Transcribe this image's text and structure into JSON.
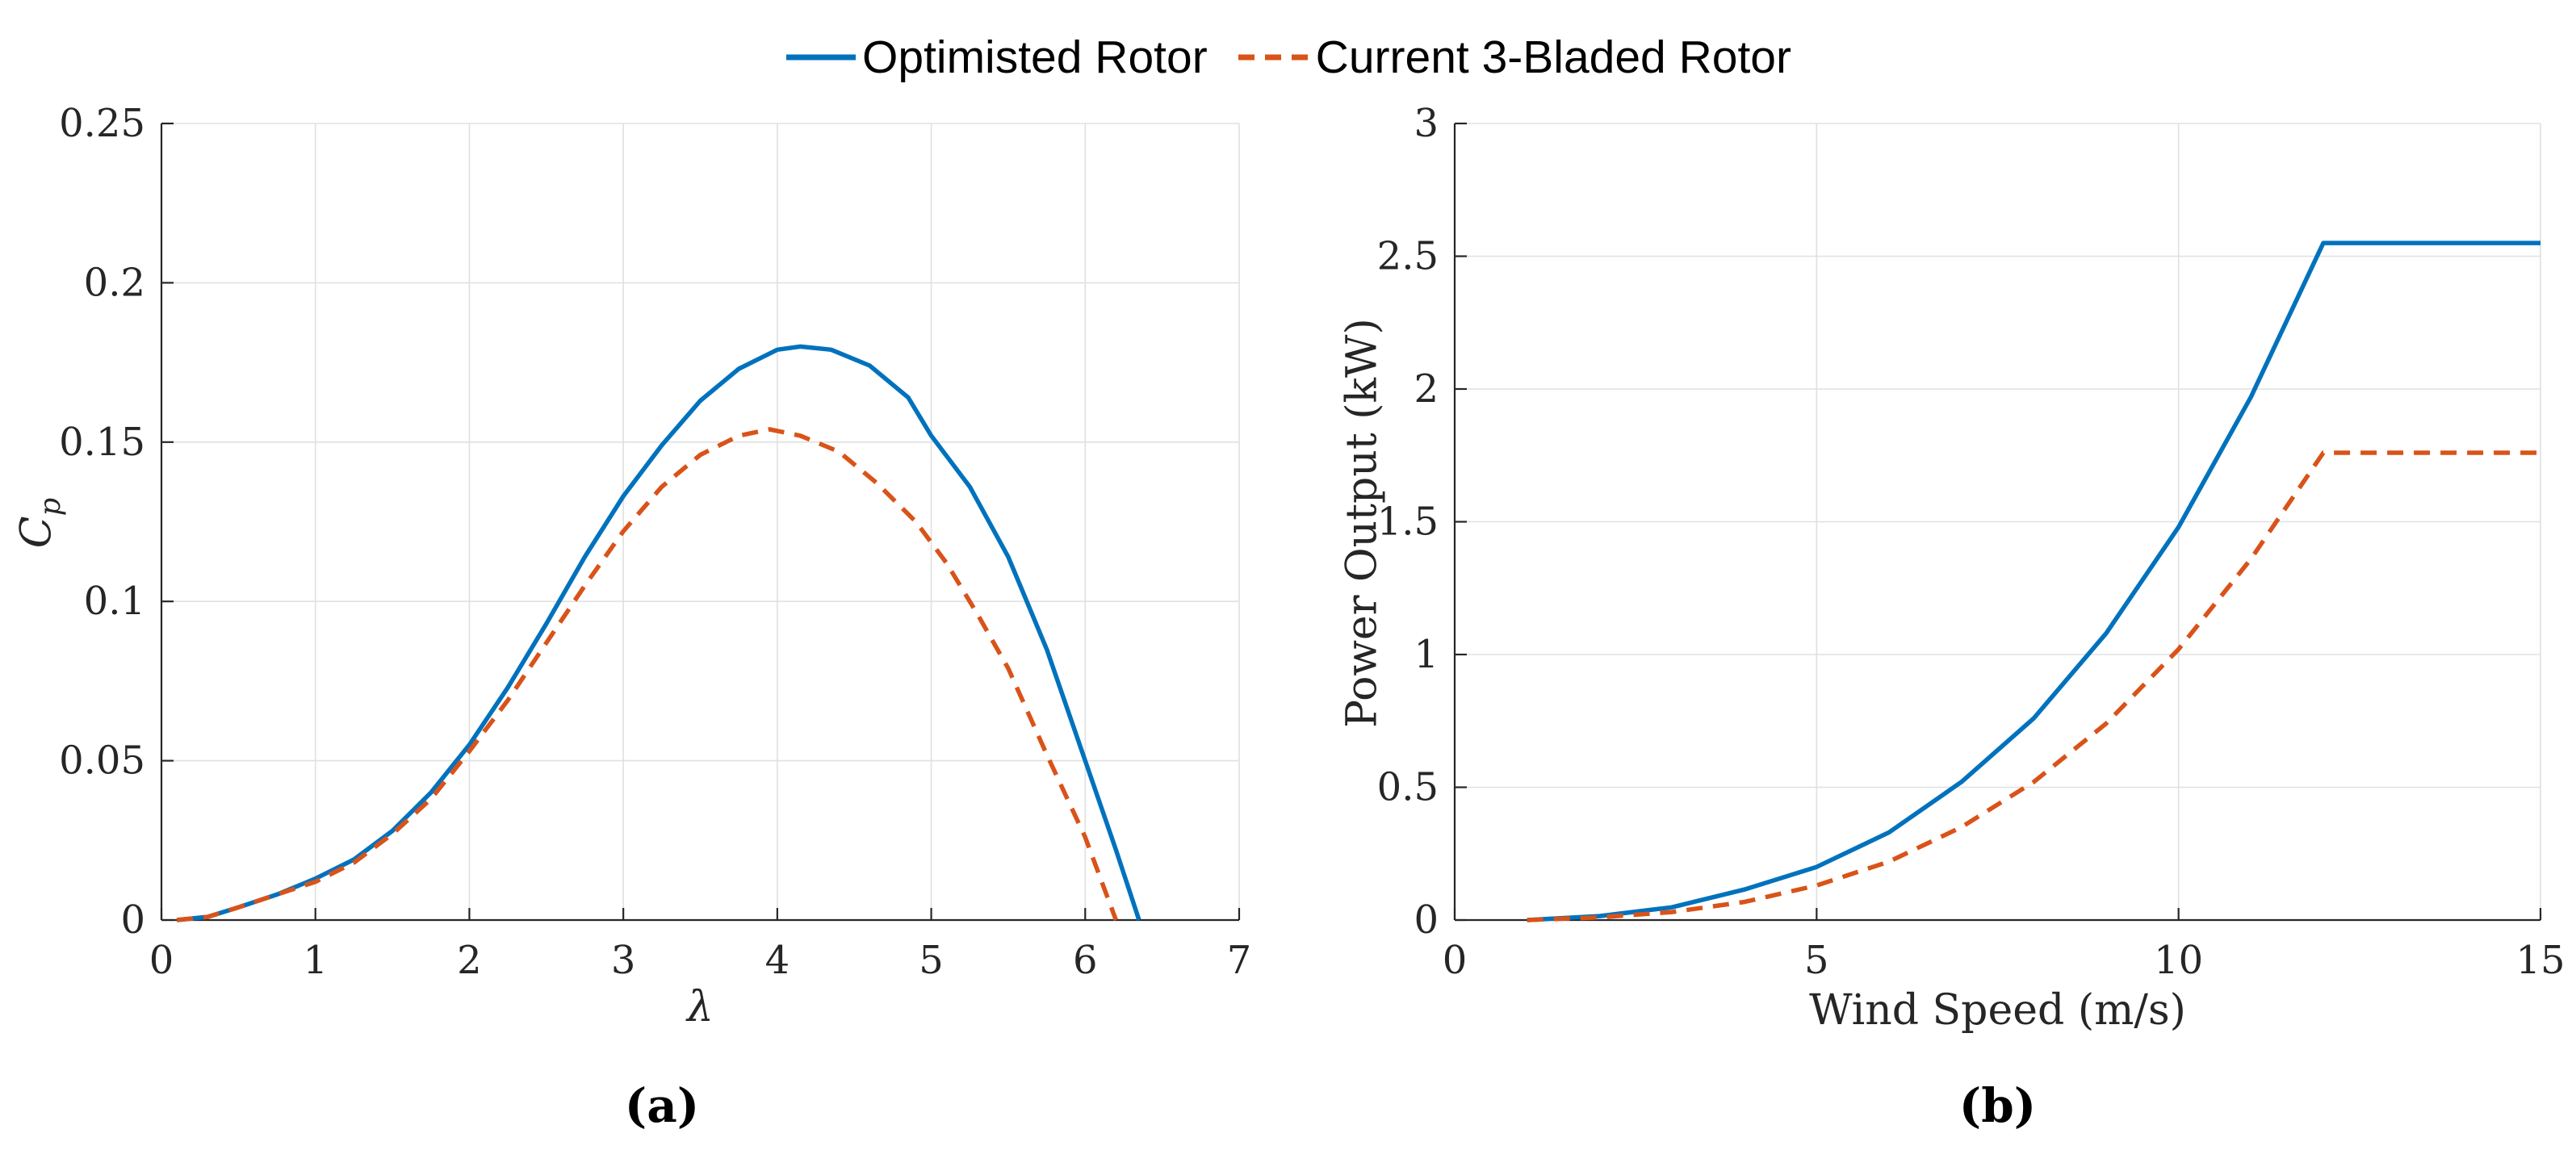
{
  "legend": {
    "items": [
      {
        "label": "Optimisted Rotor",
        "color": "#0072BD",
        "style": "solid"
      },
      {
        "label": "Current 3-Bladed Rotor",
        "color": "#D95319",
        "style": "dashed"
      }
    ]
  },
  "colors": {
    "optimised_rotor": "#0072BD",
    "current_rotor": "#D95319",
    "grid": "#e0e0e0",
    "axis": "#262626",
    "background": "#ffffff"
  },
  "chart_data": [
    {
      "id": "cp-vs-lambda",
      "type": "line",
      "caption": "(a)",
      "xlabel": "λ",
      "ylabel_main": "C",
      "ylabel_sub": "p",
      "xlim": [
        0,
        7
      ],
      "ylim": [
        0,
        0.25
      ],
      "grid": true,
      "xticks": [
        0,
        1,
        2,
        3,
        4,
        5,
        6,
        7
      ],
      "xtick_labels": [
        "0",
        "1",
        "2",
        "3",
        "4",
        "5",
        "6",
        "7"
      ],
      "yticks": [
        0,
        0.05,
        0.1,
        0.15,
        0.2,
        0.25
      ],
      "ytick_labels": [
        "0",
        "0.05",
        "0.1",
        "0.15",
        "0.2",
        "0.25"
      ],
      "series": [
        {
          "name": "Optimisted Rotor",
          "color": "#0072BD",
          "style": "solid",
          "x": [
            0.1,
            0.3,
            0.5,
            0.75,
            1,
            1.25,
            1.5,
            1.75,
            2,
            2.25,
            2.5,
            2.75,
            3,
            3.25,
            3.5,
            3.75,
            4,
            4.15,
            4.35,
            4.6,
            4.85,
            5,
            5.25,
            5.5,
            5.75,
            6,
            6.2,
            6.35
          ],
          "y": [
            0,
            0.001,
            0.004,
            0.008,
            0.013,
            0.019,
            0.028,
            0.04,
            0.055,
            0.073,
            0.093,
            0.114,
            0.133,
            0.149,
            0.163,
            0.173,
            0.179,
            0.18,
            0.179,
            0.174,
            0.164,
            0.152,
            0.136,
            0.114,
            0.085,
            0.05,
            0.022,
            0
          ]
        },
        {
          "name": "Current 3-Bladed Rotor",
          "color": "#D95319",
          "style": "dashed",
          "x": [
            0.1,
            0.3,
            0.5,
            0.75,
            1,
            1.25,
            1.5,
            1.75,
            2,
            2.25,
            2.5,
            2.75,
            3,
            3.25,
            3.5,
            3.75,
            3.95,
            4.15,
            4.4,
            4.65,
            4.9,
            5.1,
            5.3,
            5.5,
            5.75,
            6,
            6.2
          ],
          "y": [
            0,
            0.001,
            0.004,
            0.008,
            0.012,
            0.018,
            0.027,
            0.038,
            0.053,
            0.069,
            0.087,
            0.105,
            0.122,
            0.136,
            0.146,
            0.152,
            0.154,
            0.152,
            0.147,
            0.137,
            0.125,
            0.112,
            0.096,
            0.079,
            0.052,
            0.026,
            0
          ]
        }
      ]
    },
    {
      "id": "power-vs-windspeed",
      "type": "line",
      "caption": "(b)",
      "xlabel": "Wind Speed (m/s)",
      "ylabel": "Power Output (kW)",
      "xlim": [
        0,
        15
      ],
      "ylim": [
        0,
        3
      ],
      "grid": true,
      "xticks": [
        0,
        5,
        10,
        15
      ],
      "xtick_labels": [
        "0",
        "5",
        "10",
        "15"
      ],
      "yticks": [
        0,
        0.5,
        1,
        1.5,
        2,
        2.5,
        3
      ],
      "ytick_labels": [
        "0",
        "0.5",
        "1",
        "1.5",
        "2",
        "2.5",
        "3"
      ],
      "rated_power_kw": {
        "optimised": 2.55,
        "current": 1.76
      },
      "rated_wind_speed": 12,
      "series": [
        {
          "name": "Optimisted Rotor",
          "color": "#0072BD",
          "style": "solid",
          "x": [
            1,
            2,
            3,
            4,
            5,
            6,
            7,
            8,
            9,
            10,
            11,
            12,
            13,
            14,
            15
          ],
          "y": [
            0,
            0.015,
            0.048,
            0.115,
            0.2,
            0.33,
            0.52,
            0.76,
            1.08,
            1.48,
            1.97,
            2.55,
            2.55,
            2.55,
            2.55
          ]
        },
        {
          "name": "Current 3-Bladed Rotor",
          "color": "#D95319",
          "style": "dashed",
          "x": [
            1,
            2,
            3,
            4,
            5,
            6,
            7,
            8,
            9,
            10,
            11,
            12,
            13,
            14,
            15
          ],
          "y": [
            0,
            0.01,
            0.03,
            0.068,
            0.13,
            0.22,
            0.35,
            0.52,
            0.74,
            1.02,
            1.36,
            1.76,
            1.76,
            1.76,
            1.76
          ]
        }
      ]
    }
  ]
}
